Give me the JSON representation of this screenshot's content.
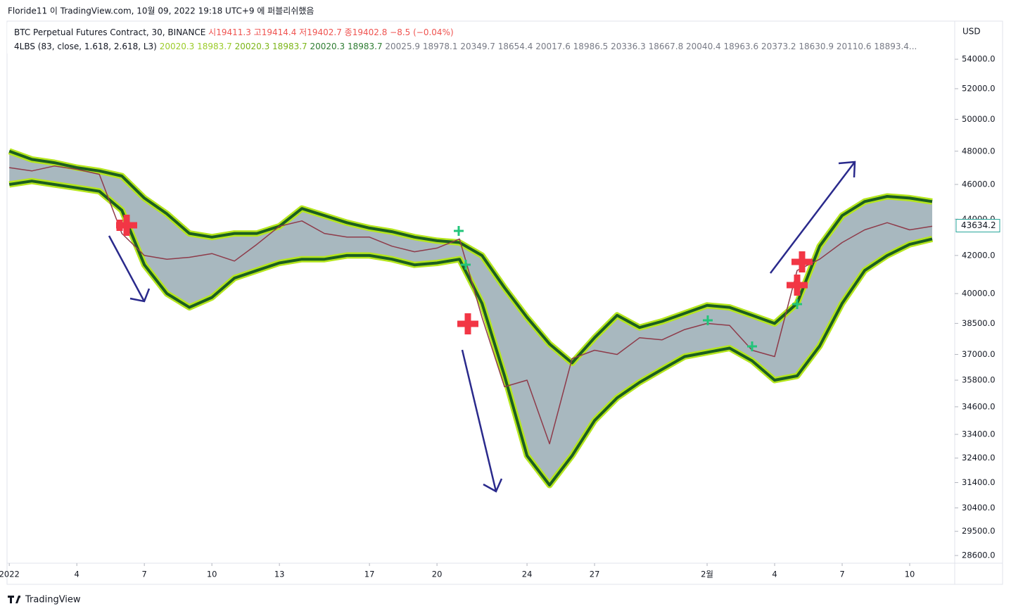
{
  "header": {
    "publish_line": "Floride11 이 TradingView.com, 10월 09, 2022 19:18 UTC+9 에 퍼블리쉬했음"
  },
  "footer": {
    "brand": "TradingView"
  },
  "chart_data": {
    "type": "line",
    "title": "BTC Perpetual Futures Contract, 30, BINANCE",
    "ohlc": {
      "open_label": "시",
      "open": 19411.3,
      "high_label": "고",
      "high": 19414.4,
      "low_label": "저",
      "low": 19402.7,
      "close_label": "종",
      "close": 19402.8,
      "change": "−8.5 (−0.04%)",
      "color": "#ef5350"
    },
    "indicator": {
      "label": "4LBS (83, close, 1.618, 2.618, L3)",
      "values": [
        20020.3,
        18983.7,
        20020.3,
        18983.7,
        20020.3,
        18983.7,
        20025.9,
        18978.1,
        20349.7,
        18654.4,
        20017.6,
        18986.5,
        20336.3,
        18667.8,
        20040.4,
        18963.6,
        20373.2,
        18630.9,
        20110.6,
        "18893.4..."
      ],
      "colors": [
        "#9ccc2a",
        "#9ccc2a",
        "#7cb518",
        "#7cb518",
        "#2e7d32",
        "#2e7d32"
      ],
      "other_color": "#787b86"
    },
    "y_unit": "USD",
    "log_scale": true,
    "ylim": [
      28320,
      56700
    ],
    "yticks": [
      {
        "value": 54000,
        "label": "54000.0"
      },
      {
        "value": 52000,
        "label": "52000.0"
      },
      {
        "value": 50000,
        "label": "50000.0"
      },
      {
        "value": 48000,
        "label": "48000.0"
      },
      {
        "value": 46000,
        "label": "46000.0"
      },
      {
        "value": 44000,
        "label": "44000.0"
      },
      {
        "value": 42000,
        "label": "42000.0"
      },
      {
        "value": 40000,
        "label": "40000.0"
      },
      {
        "value": 38500,
        "label": "38500.0"
      },
      {
        "value": 37000,
        "label": "37000.0"
      },
      {
        "value": 35800,
        "label": "35800.0"
      },
      {
        "value": 34600,
        "label": "34600.0"
      },
      {
        "value": 33400,
        "label": "33400.0"
      },
      {
        "value": 32400,
        "label": "32400.0"
      },
      {
        "value": 31400,
        "label": "31400.0"
      },
      {
        "value": 30400,
        "label": "30400.0"
      },
      {
        "value": 29500,
        "label": "29500.0"
      },
      {
        "value": 28600,
        "label": "28600.0"
      }
    ],
    "xlim": [
      -0.1,
      42
    ],
    "xticks": [
      {
        "value": 0,
        "label": "2022"
      },
      {
        "value": 3,
        "label": "4"
      },
      {
        "value": 6,
        "label": "7"
      },
      {
        "value": 9,
        "label": "10"
      },
      {
        "value": 12,
        "label": "13"
      },
      {
        "value": 16,
        "label": "17"
      },
      {
        "value": 19,
        "label": "20"
      },
      {
        "value": 23,
        "label": "24"
      },
      {
        "value": 26,
        "label": "27"
      },
      {
        "value": 31,
        "label": "2월"
      },
      {
        "value": 34,
        "label": "4"
      },
      {
        "value": 37,
        "label": "7"
      },
      {
        "value": 40,
        "label": "10"
      }
    ],
    "x": [
      0,
      1,
      2,
      3,
      4,
      5,
      6,
      7,
      8,
      9,
      10,
      11,
      12,
      13,
      14,
      15,
      16,
      17,
      18,
      19,
      20,
      21,
      22,
      23,
      24,
      25,
      26,
      27,
      28,
      29,
      30,
      31,
      32,
      33,
      34,
      35,
      36,
      37,
      38,
      39,
      40,
      41
    ],
    "series": [
      {
        "color": "#1b5e20",
        "values": [
          48000,
          47500,
          47300,
          47000,
          46800,
          46500,
          45200,
          44300,
          43200,
          43000,
          43200,
          43200,
          43600,
          44600,
          44200,
          43800,
          43500,
          43300,
          43000,
          42800,
          42700,
          42000,
          40300,
          38800,
          37500,
          36600,
          37800,
          38900,
          38300,
          38600,
          39000,
          39400,
          39300,
          38900,
          38500,
          39500,
          42500,
          44200,
          45000,
          45300,
          45200,
          45000
        ]
      },
      {
        "color": "#1b5e20",
        "values": [
          46000,
          46200,
          46000,
          45800,
          45600,
          44500,
          41500,
          40000,
          39300,
          39800,
          40800,
          41200,
          41600,
          41800,
          41800,
          42000,
          42000,
          41800,
          41500,
          41600,
          41800,
          39500,
          36000,
          32500,
          31300,
          32500,
          34000,
          35000,
          35700,
          36300,
          36900,
          37100,
          37300,
          36700,
          35800,
          36000,
          37400,
          39500,
          41200,
          42000,
          42600,
          42900
        ]
      },
      {
        "color": "#8e3b4a",
        "values": [
          47000,
          46800,
          47100,
          46900,
          46600,
          43200,
          42000,
          41800,
          41900,
          42100,
          41700,
          42600,
          43600,
          43900,
          43200,
          43000,
          43000,
          42500,
          42200,
          42400,
          42900,
          38800,
          35500,
          35800,
          33000,
          36800,
          37200,
          37000,
          37800,
          37700,
          38200,
          38500,
          38400,
          37200,
          36900,
          41200,
          41800,
          42700,
          43400,
          43800,
          43400,
          43600
        ]
      }
    ],
    "band_fill": "#9fb0b8",
    "last_price": 43634.2,
    "last_price_color": "#26a69a"
  }
}
